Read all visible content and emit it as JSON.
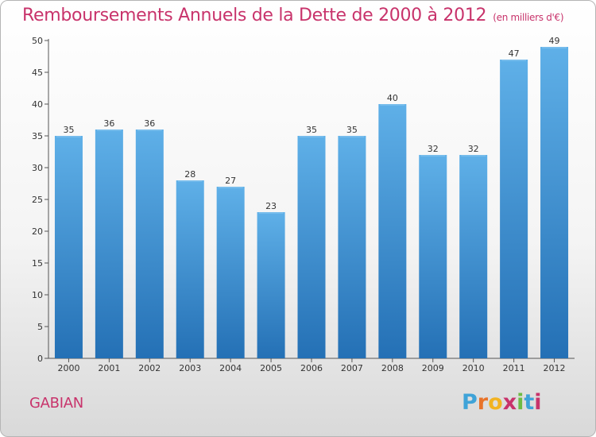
{
  "title": "Remboursements Annuels de la Dette de 2000 à 2012",
  "unit_note": "(en milliers d'€)",
  "commune": "GABIAN",
  "logo": {
    "text": "Proxiti",
    "letters": [
      "P",
      "r",
      "o",
      "x",
      "i",
      "t",
      "i"
    ],
    "colors": [
      "#3fa3d8",
      "#e8732a",
      "#f2b322",
      "#c8336b",
      "#6dbb44",
      "#3fa3d8",
      "#c8336b"
    ]
  },
  "colors": {
    "title": "#c8336b",
    "bar_top": "#5fb0e8",
    "bar_bottom": "#2470b5",
    "axis": "#555555",
    "grid": "#cccccc"
  },
  "chart_data": {
    "type": "bar",
    "title": "Remboursements Annuels de la Dette de 2000 à 2012",
    "xlabel": "",
    "ylabel": "",
    "ylim": [
      0,
      50
    ],
    "yticks": [
      0,
      5,
      10,
      15,
      20,
      25,
      30,
      35,
      40,
      45,
      50
    ],
    "grid": false,
    "categories": [
      "2000",
      "2001",
      "2002",
      "2003",
      "2004",
      "2005",
      "2006",
      "2007",
      "2008",
      "2009",
      "2010",
      "2011",
      "2012"
    ],
    "values": [
      35,
      36,
      36,
      28,
      27,
      23,
      35,
      35,
      40,
      32,
      32,
      47,
      49
    ]
  }
}
